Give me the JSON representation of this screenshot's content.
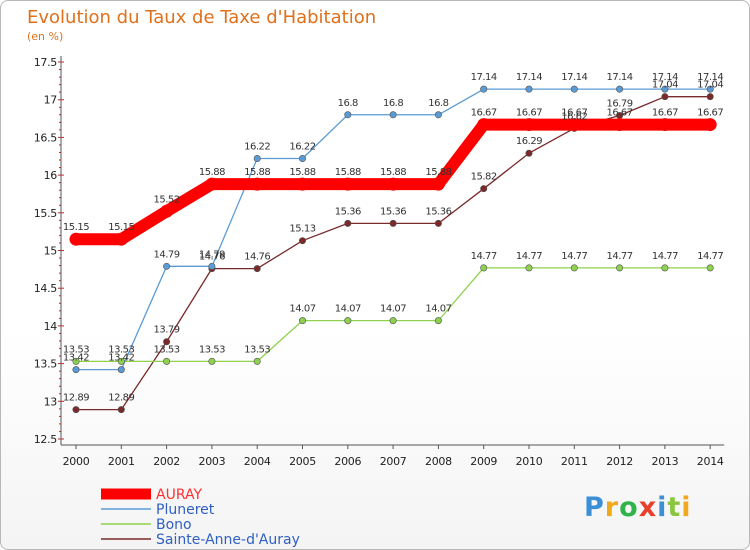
{
  "header": {
    "title": "Evolution du Taux de Taxe d'Habitation",
    "subtitle": "(en %)"
  },
  "logo": {
    "text": "Proxiti",
    "letters": [
      "P",
      "r",
      "o",
      "x",
      "i",
      "t",
      "i"
    ],
    "colors": [
      "#3a8fd6",
      "#f2a81d",
      "#2fb34a",
      "#e8402a",
      "#3a8fd6",
      "#8cc63f",
      "#f2a81d"
    ]
  },
  "chart_data": {
    "type": "line",
    "title": "Evolution du Taux de Taxe d'Habitation",
    "subtitle": "(en %)",
    "xlabel": "",
    "ylabel": "",
    "x": [
      "2000",
      "2001",
      "2002",
      "2003",
      "2004",
      "2005",
      "2006",
      "2007",
      "2008",
      "2009",
      "2010",
      "2011",
      "2012",
      "2013",
      "2014"
    ],
    "ylim": [
      12.5,
      17.5
    ],
    "yticks": [
      "12.5",
      "13",
      "13.5",
      "14",
      "14.5",
      "15",
      "15.5",
      "16",
      "16.5",
      "17",
      "17.5"
    ],
    "grid": false,
    "legend_position": "bottom-left",
    "series": [
      {
        "name": "AURAY",
        "color": "#ff0000",
        "values": [
          15.15,
          15.15,
          15.52,
          15.88,
          15.88,
          15.88,
          15.88,
          15.88,
          15.88,
          16.67,
          16.67,
          16.67,
          16.67,
          16.67,
          16.67
        ],
        "labels": [
          "15.15",
          "15.15",
          "15.52",
          "15.88",
          "15.88",
          "15.88",
          "15.88",
          "15.88",
          "15.88",
          "16.67",
          "16.67",
          "16.67",
          "16.67",
          "16.67",
          "16.67"
        ]
      },
      {
        "name": "Pluneret",
        "color": "#5b9bd5",
        "values": [
          13.42,
          13.42,
          14.79,
          14.79,
          16.22,
          16.22,
          16.8,
          16.8,
          16.8,
          17.14,
          17.14,
          17.14,
          17.14,
          17.14,
          17.14
        ],
        "labels": [
          "13.42",
          "13.42",
          "14.79",
          "14.79",
          "16.22",
          "16.22",
          "16.8",
          "16.8",
          "16.8",
          "17.14",
          "17.14",
          "17.14",
          "17.14",
          "17.14",
          "17.14"
        ]
      },
      {
        "name": "Bono",
        "color": "#8ed14f",
        "values": [
          13.53,
          13.53,
          13.53,
          13.53,
          13.53,
          14.07,
          14.07,
          14.07,
          14.07,
          14.77,
          14.77,
          14.77,
          14.77,
          14.77,
          14.77
        ],
        "labels": [
          "13.53",
          "13.53",
          "13.53",
          "13.53",
          "13.53",
          "14.07",
          "14.07",
          "14.07",
          "14.07",
          "14.77",
          "14.77",
          "14.77",
          "14.77",
          "14.77",
          "14.77"
        ]
      },
      {
        "name": "Sainte-Anne-d'Auray",
        "color": "#7a2a2a",
        "values": [
          12.89,
          12.89,
          13.79,
          14.76,
          14.76,
          15.13,
          15.36,
          15.36,
          15.36,
          15.82,
          16.29,
          16.62,
          16.79,
          17.04,
          17.04
        ],
        "labels": [
          "12.89",
          "12.89",
          "13.79",
          "14.76",
          "14.76",
          "15.13",
          "15.36",
          "15.36",
          "15.36",
          "15.82",
          "16.29",
          "16.62",
          "16.79",
          "17.04",
          "17.04"
        ]
      }
    ]
  }
}
